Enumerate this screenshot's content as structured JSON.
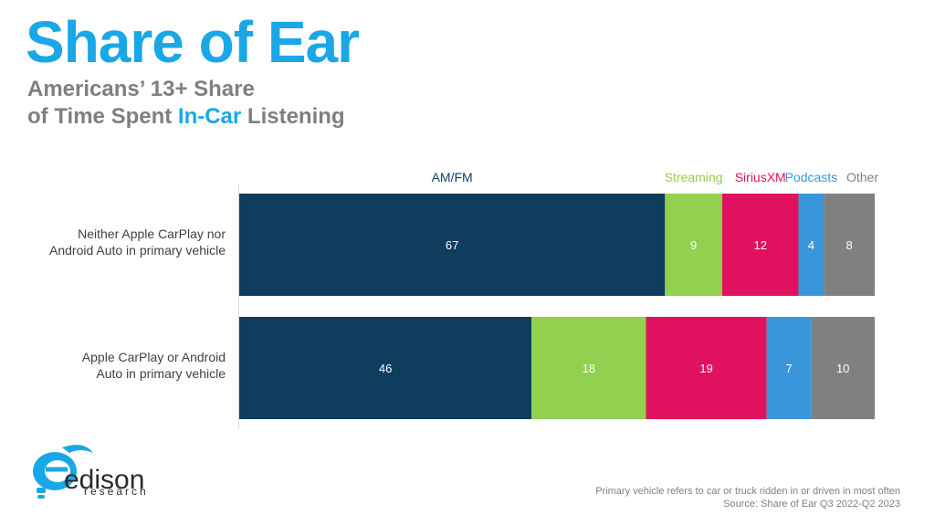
{
  "header": {
    "title": "Share of Ear",
    "subtitle_line1": "Americans’ 13+ Share",
    "subtitle_line2_pre": "of Time Spent ",
    "subtitle_line2_highlight": "In-Car",
    "subtitle_line2_post": " Listening"
  },
  "footnote": {
    "line1": "Primary vehicle refers to car or truck ridden in or driven in most often",
    "line2": "Source: Share of Ear Q3 2022-Q2 2023"
  },
  "logo": {
    "word": "edison",
    "sub": "research"
  },
  "colors": {
    "accent": "#1aa7e6",
    "subtitle_gray": "#7f7f7f"
  },
  "chart_data": {
    "type": "bar",
    "orientation": "horizontal",
    "stacked": true,
    "categories": [
      [
        "Neither Apple CarPlay nor",
        "Android Auto in primary vehicle"
      ],
      [
        "Apple CarPlay or Android",
        "Auto in primary vehicle"
      ]
    ],
    "series": [
      {
        "name": "AM/FM",
        "color": "#0e3d5e",
        "values": [
          67,
          46
        ]
      },
      {
        "name": "Streaming",
        "color": "#92d050",
        "values": [
          9,
          18
        ]
      },
      {
        "name": "SiriusXM",
        "color": "#e0115f",
        "values": [
          12,
          19
        ]
      },
      {
        "name": "Podcasts",
        "color": "#3a96db",
        "values": [
          4,
          7
        ]
      },
      {
        "name": "Other",
        "color": "#808080",
        "values": [
          8,
          10
        ]
      }
    ],
    "xlim": [
      0,
      100
    ],
    "legend_position": "top, above first bar segments"
  }
}
